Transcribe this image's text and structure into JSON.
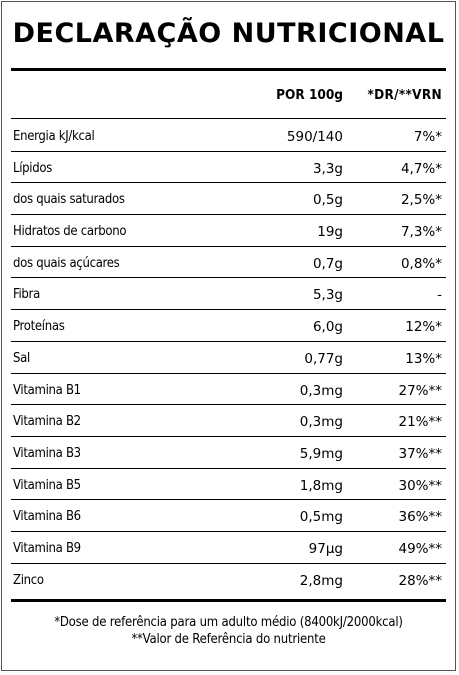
{
  "title": "DECLARAÇÃO NUTRICIONAL",
  "header": {
    "per_100g": "POR 100g",
    "dr_vrn": "*DR/**VRN"
  },
  "rows": [
    {
      "name": "Energia kJ/kcal",
      "value": "590/140",
      "dr": "7%*"
    },
    {
      "name": "Lípidos",
      "value": "3,3g",
      "dr": "4,7%*"
    },
    {
      "name": "dos quais saturados",
      "value": "0,5g",
      "dr": "2,5%*"
    },
    {
      "name": "Hidratos de carbono",
      "value": "19g",
      "dr": "7,3%*"
    },
    {
      "name": "dos quais açúcares",
      "value": "0,7g",
      "dr": "0,8%*"
    },
    {
      "name": "Fibra",
      "value": "5,3g",
      "dr": "-"
    },
    {
      "name": "Proteínas",
      "value": "6,0g",
      "dr": "12%*"
    },
    {
      "name": "Sal",
      "value": "0,77g",
      "dr": "13%*"
    },
    {
      "name": "Vitamina B1",
      "value": "0,3mg",
      "dr": "27%**"
    },
    {
      "name": "Vitamina B2",
      "value": "0,3mg",
      "dr": "21%**"
    },
    {
      "name": "Vitamina B3",
      "value": "5,9mg",
      "dr": "37%**"
    },
    {
      "name": "Vitamina B5",
      "value": "1,8mg",
      "dr": "30%**"
    },
    {
      "name": "Vitamina B6",
      "value": "0,5mg",
      "dr": "36%**"
    },
    {
      "name": "Vitamina B9",
      "value": "97µg",
      "dr": "49%**"
    },
    {
      "name": "Zinco",
      "value": "2,8mg",
      "dr": "28%**"
    }
  ],
  "footer": {
    "line1": "*Dose de referência para um adulto médio (8400kJ/2000kcal)",
    "line2": "**Valor de Referência do nutriente"
  }
}
